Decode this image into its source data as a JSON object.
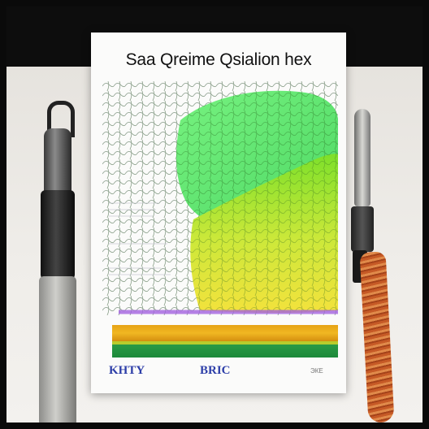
{
  "poster": {
    "title": "Saa Qreime Qsialion hex",
    "footer_left": "KHTY",
    "footer_mid": "BRIC",
    "footer_right": "ЭКЕ"
  },
  "colors": {
    "green_area": "#3fe15a",
    "lime_area": "#7ee02a",
    "yellow_area": "#f0e03a",
    "purple_edge": "#a463e0",
    "band_orange": "#f0b722",
    "band_green": "#1c8a3a",
    "pen_wood": "#c65a26"
  }
}
